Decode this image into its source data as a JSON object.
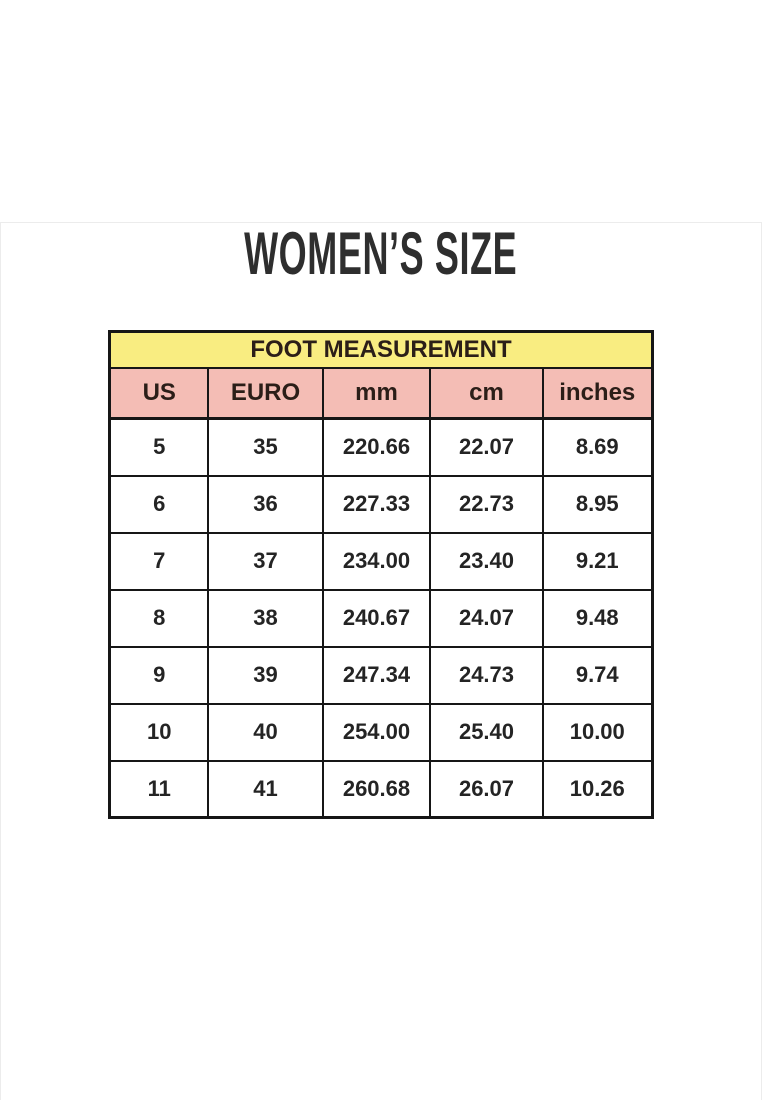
{
  "page": {
    "title": "WOMEN’S SIZE"
  },
  "chart_data": {
    "type": "table",
    "title": "FOOT MEASUREMENT",
    "columns": [
      "US",
      "EURO",
      "mm",
      "cm",
      "inches"
    ],
    "rows": [
      [
        "5",
        "35",
        "220.66",
        "22.07",
        "8.69"
      ],
      [
        "6",
        "36",
        "227.33",
        "22.73",
        "8.95"
      ],
      [
        "7",
        "37",
        "234.00",
        "23.40",
        "9.21"
      ],
      [
        "8",
        "38",
        "240.67",
        "24.07",
        "9.48"
      ],
      [
        "9",
        "39",
        "247.34",
        "24.73",
        "9.74"
      ],
      [
        "10",
        "40",
        "254.00",
        "25.40",
        "10.00"
      ],
      [
        "11",
        "41",
        "260.68",
        "26.07",
        "10.26"
      ]
    ]
  },
  "colors": {
    "banner_bg": "#F9ED81",
    "col_header_bg": "#F4BDB5",
    "border": "#161616",
    "header_text": "#2B1E18",
    "data_text": "#242424",
    "title_text": "#2E2E2E"
  }
}
